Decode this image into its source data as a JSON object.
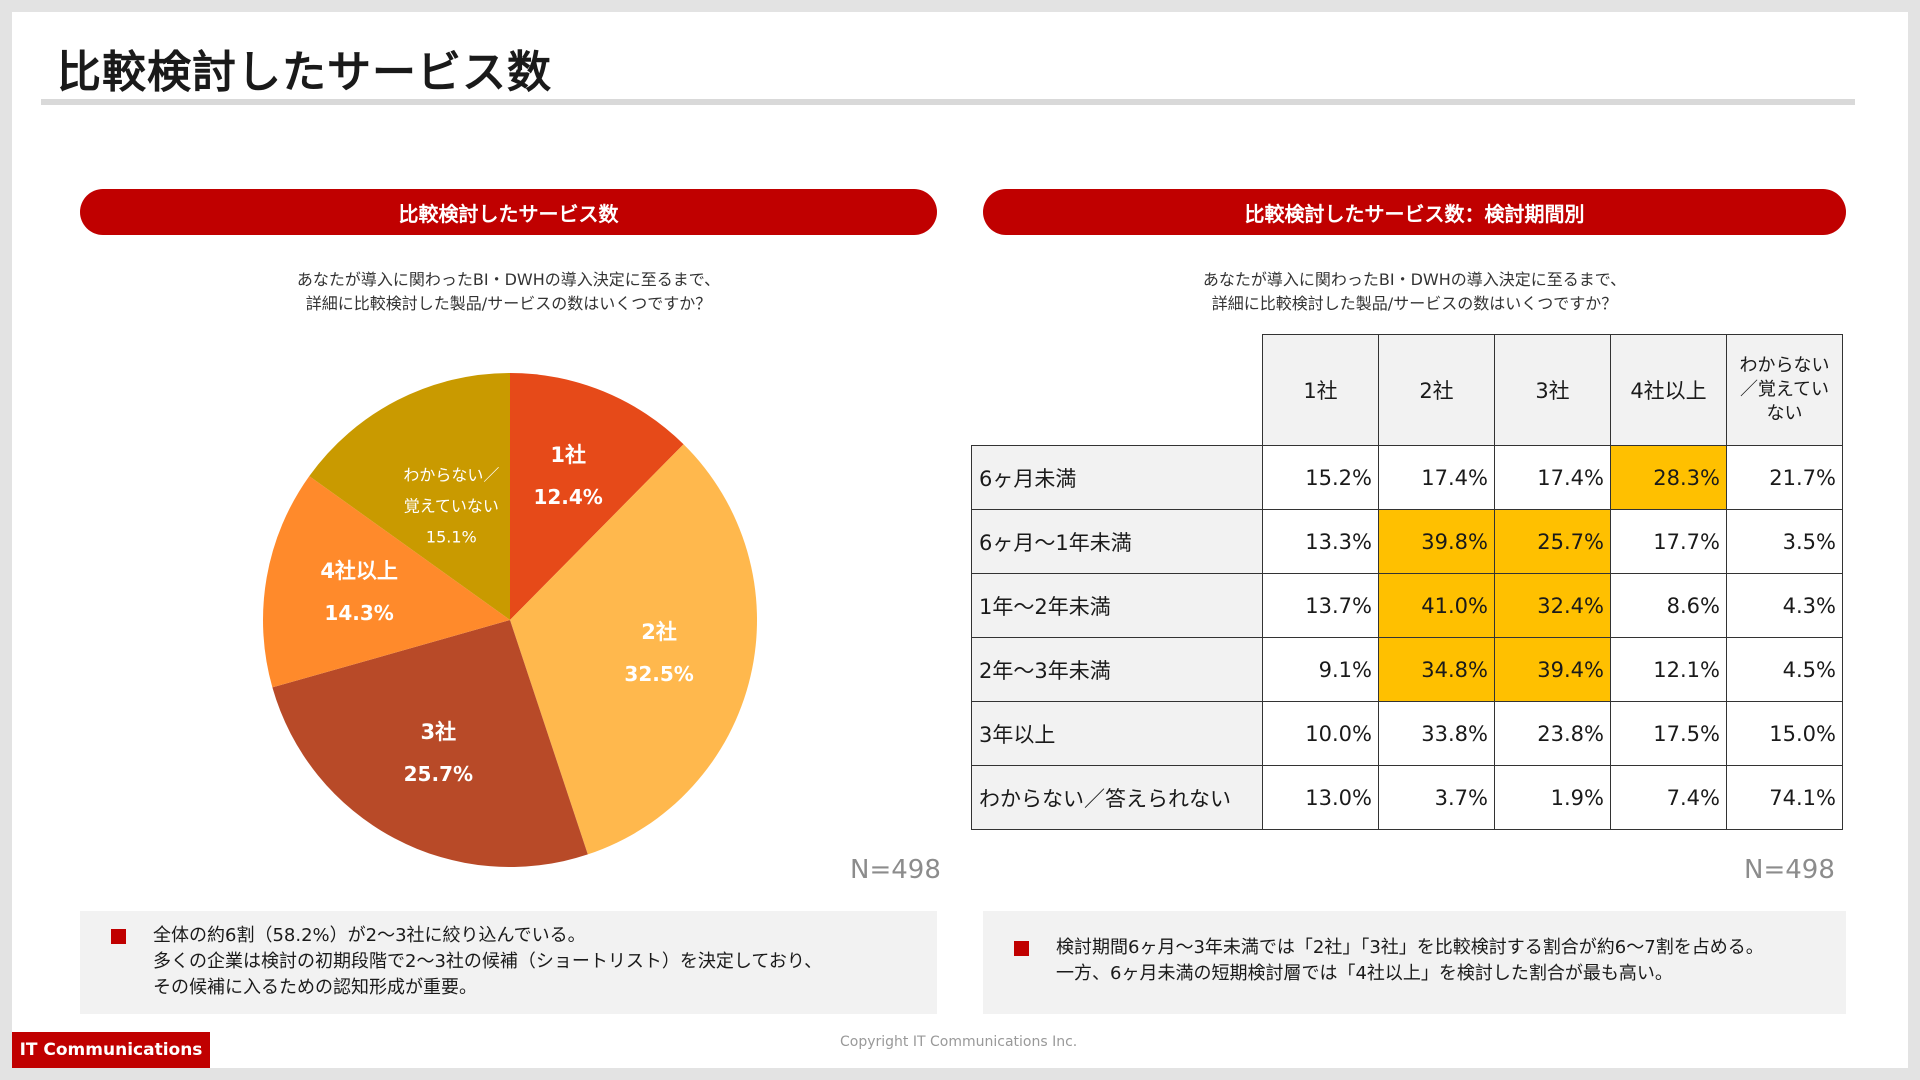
{
  "page": {
    "title": "比較検討したサービス数"
  },
  "left_panel": {
    "header": "比較検討したサービス数",
    "question": [
      "あなたが導入に関わったBI・DWHの導入決定に至るまで、",
      "詳細に比較検討した製品/サービスの数はいくつですか？"
    ],
    "n_label": "N=498",
    "summary": [
      "全体の約6割（58.2%）が2〜3社に絞り込んでいる。",
      "多くの企業は検討の初期段階で2〜3社の候補（ショートリスト）を決定しており、",
      "その候補に入るための認知形成が重要。"
    ]
  },
  "right_panel": {
    "header": "比較検討したサービス数：検討期間別",
    "question": [
      "あなたが導入に関わったBI・DWHの導入決定に至るまで、",
      "詳細に比較検討した製品/サービスの数はいくつですか？"
    ],
    "n_label": "N=498",
    "summary": [
      "検討期間6ヶ月〜3年未満では「2社」「3社」を比較検討する割合が約6〜7割を占める。",
      "一方、6ヶ月未満の短期検討層では「4社以上」を検討した割合が最も高い。"
    ]
  },
  "chart_data": [
    {
      "type": "pie",
      "slices": [
        {
          "name": "1社",
          "value": 12.4,
          "label": "12.4%",
          "color": "#e64a19"
        },
        {
          "name": "2社",
          "value": 32.5,
          "label": "32.5%",
          "color": "#ffb84d"
        },
        {
          "name": "3社",
          "value": 25.7,
          "label": "25.7%",
          "color": "#b84a28"
        },
        {
          "name": "4社以上",
          "value": 14.3,
          "label": "14.3%",
          "color": "#ff8a2b"
        },
        {
          "name": "わからない／覚えていない",
          "name_lines": [
            "わからない／",
            "覚えていない"
          ],
          "value": 15.1,
          "label": "15.1%",
          "color": "#c99a00"
        }
      ]
    },
    {
      "type": "table",
      "columns": [
        "1社",
        "2社",
        "3社",
        "4社以上",
        "わからない／覚えていない"
      ],
      "column_lines": [
        [
          "1社"
        ],
        [
          "2社"
        ],
        [
          "3社"
        ],
        [
          "4社以上"
        ],
        [
          "わからない",
          "／覚えてい",
          "ない"
        ]
      ],
      "highlight_color": "#ffc000",
      "rows": [
        {
          "label": "6ヶ月未満",
          "values": [
            "15.2%",
            "17.4%",
            "17.4%",
            "28.3%",
            "21.7%"
          ],
          "highlight": [
            false,
            false,
            false,
            true,
            false
          ]
        },
        {
          "label": "6ヶ月〜1年未満",
          "values": [
            "13.3%",
            "39.8%",
            "25.7%",
            "17.7%",
            "3.5%"
          ],
          "highlight": [
            false,
            true,
            true,
            false,
            false
          ]
        },
        {
          "label": "1年〜2年未満",
          "values": [
            "13.7%",
            "41.0%",
            "32.4%",
            "8.6%",
            "4.3%"
          ],
          "highlight": [
            false,
            true,
            true,
            false,
            false
          ]
        },
        {
          "label": "2年〜3年未満",
          "values": [
            "9.1%",
            "34.8%",
            "39.4%",
            "12.1%",
            "4.5%"
          ],
          "highlight": [
            false,
            true,
            true,
            false,
            false
          ]
        },
        {
          "label": "3年以上",
          "values": [
            "10.0%",
            "33.8%",
            "23.8%",
            "17.5%",
            "15.0%"
          ],
          "highlight": [
            false,
            false,
            false,
            false,
            false
          ]
        },
        {
          "label": "わからない／答えられない",
          "values": [
            "13.0%",
            "3.7%",
            "1.9%",
            "7.4%",
            "74.1%"
          ],
          "highlight": [
            false,
            false,
            false,
            false,
            false
          ]
        }
      ]
    }
  ],
  "footer": {
    "brand": "IT Communications",
    "copyright": "Copyright IT Communications Inc."
  }
}
